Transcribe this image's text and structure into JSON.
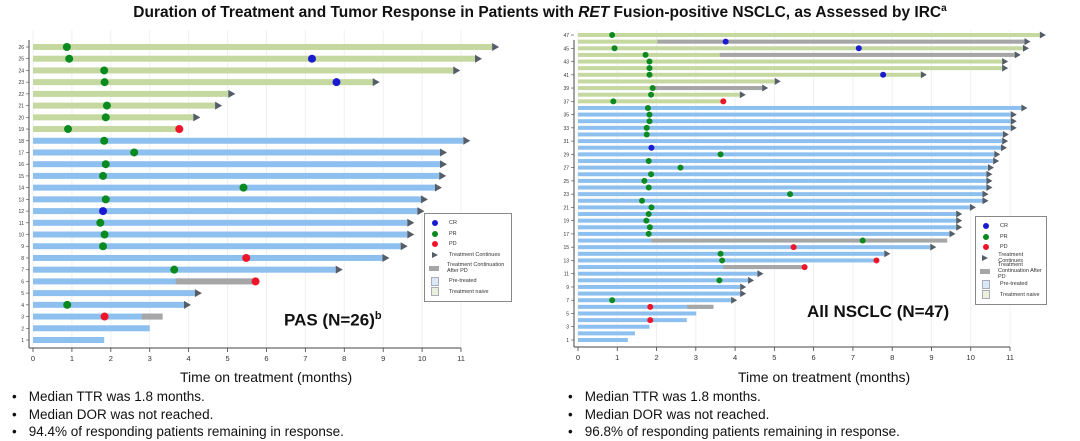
{
  "title": {
    "before": "Duration of Treatment and Tumor Response in Patients with ",
    "italic": "RET",
    "after": " Fusion-positive NSCLC, as Assessed by IRC",
    "sup": "a"
  },
  "colors": {
    "naive": "#c4d89f",
    "pretreated": "#8ec0ef",
    "continuation_after_pd": "#a6a6a6",
    "CR": "#1a1ad0",
    "PR": "#0b8a20",
    "PD": "#f0142a",
    "arrow": "#555d66"
  },
  "legend": {
    "CR": "CR",
    "PR": "PR",
    "PD": "PD",
    "continues": "Treatment Continues",
    "after_pd": "Treatment Continuation After PD",
    "pretreated": "Pre-treated",
    "naive": "Treatment naive"
  },
  "chart_data": [
    {
      "type": "swimmer",
      "panel_label": "PAS (N=26)",
      "panel_label_sup": "b",
      "xlabel": "Time on treatment (months)",
      "xlim": [
        0,
        11
      ],
      "xticks": [
        "0",
        "1",
        "2",
        "3",
        "4",
        "5",
        "6",
        "7",
        "8",
        "9",
        "10",
        "11"
      ],
      "ytick_step": 1,
      "rows": [
        {
          "id": 26,
          "group": "naive",
          "end": 11.8,
          "arrow": true,
          "markers": [
            [
              "PR",
              0.87
            ]
          ]
        },
        {
          "id": 25,
          "group": "naive",
          "end": 11.36,
          "arrow": true,
          "markers": [
            [
              "PR",
              0.93
            ],
            [
              "CR",
              7.17
            ]
          ]
        },
        {
          "id": 24,
          "group": "naive",
          "end": 10.8,
          "arrow": true,
          "markers": [
            [
              "PR",
              1.83
            ]
          ]
        },
        {
          "id": 23,
          "group": "naive",
          "end": 8.73,
          "arrow": true,
          "markers": [
            [
              "PR",
              1.84
            ],
            [
              "CR",
              7.8
            ]
          ]
        },
        {
          "id": 22,
          "group": "naive",
          "end": 5.02,
          "arrow": true,
          "markers": []
        },
        {
          "id": 21,
          "group": "naive",
          "end": 4.68,
          "arrow": true,
          "markers": [
            [
              "PR",
              1.9
            ]
          ]
        },
        {
          "id": 20,
          "group": "naive",
          "end": 4.12,
          "arrow": true,
          "markers": [
            [
              "PR",
              1.87
            ]
          ]
        },
        {
          "id": 19,
          "group": "naive",
          "end": 3.76,
          "arrow": false,
          "markers": [
            [
              "PR",
              0.9
            ],
            [
              "PD",
              3.76
            ]
          ]
        },
        {
          "id": 18,
          "group": "pretreated",
          "end": 11.06,
          "arrow": true,
          "markers": [
            [
              "PR",
              1.83
            ]
          ]
        },
        {
          "id": 17,
          "group": "pretreated",
          "end": 10.46,
          "arrow": true,
          "markers": [
            [
              "PR",
              2.6
            ]
          ]
        },
        {
          "id": 16,
          "group": "pretreated",
          "end": 10.46,
          "arrow": true,
          "markers": [
            [
              "PR",
              1.87
            ]
          ]
        },
        {
          "id": 15,
          "group": "pretreated",
          "end": 10.44,
          "arrow": true,
          "markers": [
            [
              "PR",
              1.8
            ]
          ]
        },
        {
          "id": 14,
          "group": "pretreated",
          "end": 10.33,
          "arrow": true,
          "markers": [
            [
              "PR",
              5.41
            ]
          ]
        },
        {
          "id": 13,
          "group": "pretreated",
          "end": 9.97,
          "arrow": true,
          "markers": [
            [
              "PR",
              1.87
            ]
          ]
        },
        {
          "id": 12,
          "group": "pretreated",
          "end": 9.88,
          "arrow": true,
          "markers": [
            [
              "CR",
              1.8
            ]
          ]
        },
        {
          "id": 11,
          "group": "pretreated",
          "end": 9.62,
          "arrow": true,
          "markers": [
            [
              "PR",
              1.73
            ]
          ]
        },
        {
          "id": 10,
          "group": "pretreated",
          "end": 9.62,
          "arrow": true,
          "markers": [
            [
              "PR",
              1.84
            ]
          ]
        },
        {
          "id": 9,
          "group": "pretreated",
          "end": 9.45,
          "arrow": true,
          "markers": [
            [
              "PR",
              1.8
            ]
          ]
        },
        {
          "id": 8,
          "group": "pretreated",
          "end": 8.98,
          "arrow": true,
          "markers": [
            [
              "PD",
              5.48
            ]
          ]
        },
        {
          "id": 7,
          "group": "pretreated",
          "end": 7.78,
          "arrow": true,
          "markers": [
            [
              "PR",
              3.63
            ]
          ]
        },
        {
          "id": 6,
          "group": "pretreated",
          "end": 5.72,
          "after_pd": [
            3.67,
            5.72
          ],
          "arrow": false,
          "markers": [
            [
              "PD",
              5.72
            ]
          ]
        },
        {
          "id": 5,
          "group": "pretreated",
          "end": 4.16,
          "arrow": true,
          "markers": []
        },
        {
          "id": 4,
          "group": "pretreated",
          "end": 3.88,
          "arrow": true,
          "markers": [
            [
              "PR",
              0.88
            ]
          ]
        },
        {
          "id": 3,
          "group": "pretreated",
          "end": 3.33,
          "after_pd": [
            2.8,
            3.33
          ],
          "arrow": false,
          "markers": [
            [
              "PD",
              1.84
            ]
          ]
        },
        {
          "id": 2,
          "group": "pretreated",
          "end": 3.0,
          "arrow": false,
          "markers": []
        },
        {
          "id": 1,
          "group": "pretreated",
          "end": 1.83,
          "arrow": false,
          "markers": []
        }
      ],
      "bullets": [
        "Median TTR was 1.8 months.",
        "Median DOR was not reached.",
        "94.4% of responding patients remaining in response."
      ]
    },
    {
      "type": "swimmer",
      "panel_label": "All NSCLC (N=47)",
      "panel_label_sup": "",
      "xlabel": "Time on treatment (months)",
      "xlim": [
        0,
        11
      ],
      "xticks": [
        "0",
        "1",
        "2",
        "3",
        "4",
        "5",
        "6",
        "7",
        "8",
        "9",
        "10",
        "11"
      ],
      "ytick_step": 2,
      "rows": [
        {
          "id": 47,
          "group": "naive",
          "end": 11.76,
          "arrow": true,
          "markers": [
            [
              "PR",
              0.87
            ]
          ]
        },
        {
          "id": 46,
          "group": "naive",
          "end": 11.37,
          "after_pd": [
            2.02,
            11.37
          ],
          "arrow": true,
          "markers": [
            [
              "CR",
              3.76
            ]
          ]
        },
        {
          "id": 45,
          "group": "naive",
          "end": 11.33,
          "arrow": true,
          "markers": [
            [
              "PR",
              0.93
            ],
            [
              "CR",
              7.15
            ]
          ]
        },
        {
          "id": 44,
          "group": "naive",
          "end": 11.12,
          "after_pd": [
            3.61,
            11.12
          ],
          "arrow": true,
          "markers": [
            [
              "PR",
              1.72
            ]
          ]
        },
        {
          "id": 43,
          "group": "naive",
          "end": 10.8,
          "arrow": true,
          "markers": [
            [
              "PR",
              1.82
            ]
          ]
        },
        {
          "id": 42,
          "group": "naive",
          "end": 10.8,
          "arrow": true,
          "markers": [
            [
              "PR",
              1.82
            ]
          ]
        },
        {
          "id": 41,
          "group": "naive",
          "end": 8.73,
          "arrow": true,
          "markers": [
            [
              "PR",
              1.82
            ],
            [
              "CR",
              7.77
            ]
          ]
        },
        {
          "id": 40,
          "group": "naive",
          "end": 5.01,
          "arrow": true,
          "markers": []
        },
        {
          "id": 39,
          "group": "naive",
          "end": 4.69,
          "after_pd": [
            1.9,
            4.69
          ],
          "arrow": true,
          "markers": [
            [
              "PR",
              1.9
            ]
          ]
        },
        {
          "id": 38,
          "group": "naive",
          "end": 4.12,
          "arrow": true,
          "markers": [
            [
              "PR",
              1.86
            ]
          ]
        },
        {
          "id": 37,
          "group": "naive",
          "end": 3.7,
          "arrow": false,
          "markers": [
            [
              "PR",
              0.9
            ],
            [
              "PD",
              3.7
            ]
          ]
        },
        {
          "id": 36,
          "group": "pretreated",
          "end": 11.29,
          "arrow": true,
          "markers": [
            [
              "PR",
              1.78
            ]
          ]
        },
        {
          "id": 35,
          "group": "pretreated",
          "end": 11.02,
          "arrow": true,
          "markers": [
            [
              "PR",
              1.82
            ]
          ]
        },
        {
          "id": 34,
          "group": "pretreated",
          "end": 11.02,
          "arrow": true,
          "markers": [
            [
              "PR",
              1.82
            ]
          ]
        },
        {
          "id": 33,
          "group": "pretreated",
          "end": 11.02,
          "arrow": true,
          "markers": [
            [
              "PR",
              1.75
            ]
          ]
        },
        {
          "id": 32,
          "group": "pretreated",
          "end": 10.82,
          "arrow": true,
          "markers": [
            [
              "PR",
              1.75
            ]
          ]
        },
        {
          "id": 31,
          "group": "pretreated",
          "end": 10.8,
          "arrow": true,
          "markers": []
        },
        {
          "id": 30,
          "group": "pretreated",
          "end": 10.77,
          "arrow": true,
          "markers": [
            [
              "CR",
              1.87
            ]
          ]
        },
        {
          "id": 29,
          "group": "pretreated",
          "end": 10.6,
          "arrow": true,
          "markers": [
            [
              "PR",
              3.63
            ]
          ]
        },
        {
          "id": 28,
          "group": "pretreated",
          "end": 10.57,
          "arrow": true,
          "markers": [
            [
              "PR",
              1.8
            ]
          ]
        },
        {
          "id": 27,
          "group": "pretreated",
          "end": 10.44,
          "arrow": true,
          "markers": [
            [
              "PR",
              2.61
            ]
          ]
        },
        {
          "id": 26,
          "group": "pretreated",
          "end": 10.4,
          "arrow": true,
          "markers": [
            [
              "PR",
              1.86
            ]
          ]
        },
        {
          "id": 25,
          "group": "pretreated",
          "end": 10.4,
          "arrow": true,
          "markers": [
            [
              "PR",
              1.69
            ]
          ]
        },
        {
          "id": 24,
          "group": "pretreated",
          "end": 10.4,
          "arrow": true,
          "markers": [
            [
              "PR",
              1.8
            ]
          ]
        },
        {
          "id": 23,
          "group": "pretreated",
          "end": 10.3,
          "arrow": true,
          "markers": [
            [
              "PR",
              5.4
            ]
          ]
        },
        {
          "id": 22,
          "group": "pretreated",
          "end": 10.3,
          "arrow": true,
          "markers": [
            [
              "PR",
              1.63
            ]
          ]
        },
        {
          "id": 21,
          "group": "pretreated",
          "end": 9.98,
          "arrow": true,
          "markers": [
            [
              "PR",
              1.87
            ]
          ]
        },
        {
          "id": 20,
          "group": "pretreated",
          "end": 9.63,
          "arrow": true,
          "markers": [
            [
              "PR",
              1.8
            ]
          ]
        },
        {
          "id": 19,
          "group": "pretreated",
          "end": 9.63,
          "arrow": true,
          "markers": [
            [
              "PR",
              1.74
            ]
          ]
        },
        {
          "id": 18,
          "group": "pretreated",
          "end": 9.63,
          "arrow": true,
          "markers": [
            [
              "PR",
              1.83
            ]
          ]
        },
        {
          "id": 17,
          "group": "pretreated",
          "end": 9.46,
          "arrow": true,
          "markers": [
            [
              "PR",
              1.8
            ]
          ]
        },
        {
          "id": 16,
          "group": "pretreated",
          "end": 9.4,
          "after_pd": [
            1.87,
            9.4
          ],
          "arrow": false,
          "markers": [
            [
              "PR",
              7.25
            ]
          ]
        },
        {
          "id": 15,
          "group": "pretreated",
          "end": 8.97,
          "arrow": true,
          "markers": [
            [
              "PD",
              5.49
            ]
          ]
        },
        {
          "id": 14,
          "group": "pretreated",
          "end": 7.8,
          "arrow": true,
          "markers": [
            [
              "PR",
              3.63
            ]
          ]
        },
        {
          "id": 13,
          "group": "pretreated",
          "end": 7.6,
          "arrow": false,
          "markers": [
            [
              "PR",
              3.67
            ],
            [
              "PD",
              7.6
            ]
          ]
        },
        {
          "id": 12,
          "group": "pretreated",
          "end": 5.77,
          "after_pd": [
            3.7,
            5.77
          ],
          "arrow": false,
          "markers": [
            [
              "PD",
              5.77
            ]
          ]
        },
        {
          "id": 11,
          "group": "pretreated",
          "end": 4.57,
          "arrow": true,
          "markers": []
        },
        {
          "id": 10,
          "group": "pretreated",
          "end": 4.33,
          "arrow": true,
          "markers": [
            [
              "PR",
              3.6
            ]
          ]
        },
        {
          "id": 9,
          "group": "pretreated",
          "end": 4.13,
          "arrow": true,
          "markers": []
        },
        {
          "id": 8,
          "group": "pretreated",
          "end": 4.13,
          "arrow": true,
          "markers": []
        },
        {
          "id": 7,
          "group": "pretreated",
          "end": 3.9,
          "arrow": true,
          "markers": [
            [
              "PR",
              0.87
            ]
          ]
        },
        {
          "id": 6,
          "group": "pretreated",
          "end": 3.45,
          "after_pd": [
            2.78,
            3.45
          ],
          "arrow": false,
          "markers": [
            [
              "PD",
              1.84
            ]
          ]
        },
        {
          "id": 5,
          "group": "pretreated",
          "end": 3.01,
          "arrow": false,
          "markers": []
        },
        {
          "id": 4,
          "group": "pretreated",
          "end": 2.77,
          "arrow": false,
          "markers": [
            [
              "PD",
              1.84
            ]
          ]
        },
        {
          "id": 3,
          "group": "pretreated",
          "end": 1.82,
          "arrow": false,
          "markers": []
        },
        {
          "id": 2,
          "group": "pretreated",
          "end": 1.45,
          "arrow": false,
          "markers": []
        },
        {
          "id": 1,
          "group": "pretreated",
          "end": 1.27,
          "arrow": false,
          "markers": []
        }
      ],
      "bullets": [
        "Median TTR was 1.8 months.",
        "Median DOR was not reached.",
        "96.8% of responding patients remaining in response."
      ]
    }
  ]
}
